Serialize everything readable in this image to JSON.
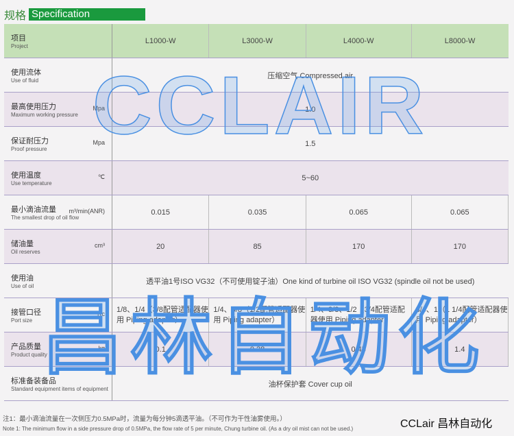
{
  "title": {
    "cn": "规格",
    "en": "Specification"
  },
  "header": {
    "cn": "项目",
    "en": "Project",
    "models": [
      "L1000-W",
      "L3000-W",
      "L4000-W",
      "L8000-W"
    ]
  },
  "rows": [
    {
      "cn": "使用流体",
      "en": "Use of fluid",
      "unit": "",
      "value": "压缩空气 Compressed air"
    },
    {
      "cn": "最高使用压力",
      "en": "Maximum working pressure",
      "unit": "Mpa",
      "value": "1.0"
    },
    {
      "cn": "保证耐压力",
      "en": "Proof pressure",
      "unit": "Mpa",
      "value": "1.5"
    },
    {
      "cn": "使用温度",
      "en": "Use temperature",
      "unit": "℃",
      "value": "5~60"
    },
    {
      "cn": "最小滴油流量",
      "en": "The smallest drop of oil flow",
      "unit": "m³/min(ANR)",
      "values": [
        "0.015",
        "0.035",
        "0.065",
        "0.065"
      ]
    },
    {
      "cn": "储油量",
      "en": "Oil reserves",
      "unit": "cm³",
      "values": [
        "20",
        "85",
        "170",
        "170"
      ]
    },
    {
      "cn": "使用油",
      "en": "Use of oil",
      "unit": "",
      "value": "透平油1号ISO VG32（不可使用锭子油）One kind of turbine oil ISO VG32 (spindle oil not be used)"
    },
    {
      "cn": "接管口径",
      "en": "Port size",
      "unit": "Rc",
      "values": [
        "1/8、1/4（3/8配管适配器使用 Piping adapter）",
        "1/4、3/8（1/2配管适配器使用 Piping adapter）",
        "1/4、3/8、1/2（3/4配管适配器使用 Piping adapter）",
        "3/4、1（1 1/4配管适配器使用 Piping adapter）"
      ]
    },
    {
      "cn": "产品质量",
      "en": "Product quality",
      "unit": "kg",
      "values": [
        "0.1",
        "0.28",
        "0.45",
        "1.4"
      ]
    },
    {
      "cn": "标准备装备品",
      "en": "Standard equipment items of equipment",
      "unit": "",
      "value": "油杯保护套 Cover cup oil"
    }
  ],
  "note": {
    "cn": "注1：最小滴油流量在一次侧压力0.5MPa时，流量为每分钟5滴透平油。（不可作为干性油雾使用。）",
    "en": "Note 1: The minimum flow in a side pressure drop of 0.5MPa, the flow rate of 5 per minute, Chung turbine oil. (As a dry oil mist can not be used.)"
  },
  "watermark": {
    "top": "CCLAIR",
    "bottom": "昌林自动化"
  },
  "brand": "CCLair 昌林自动化"
}
